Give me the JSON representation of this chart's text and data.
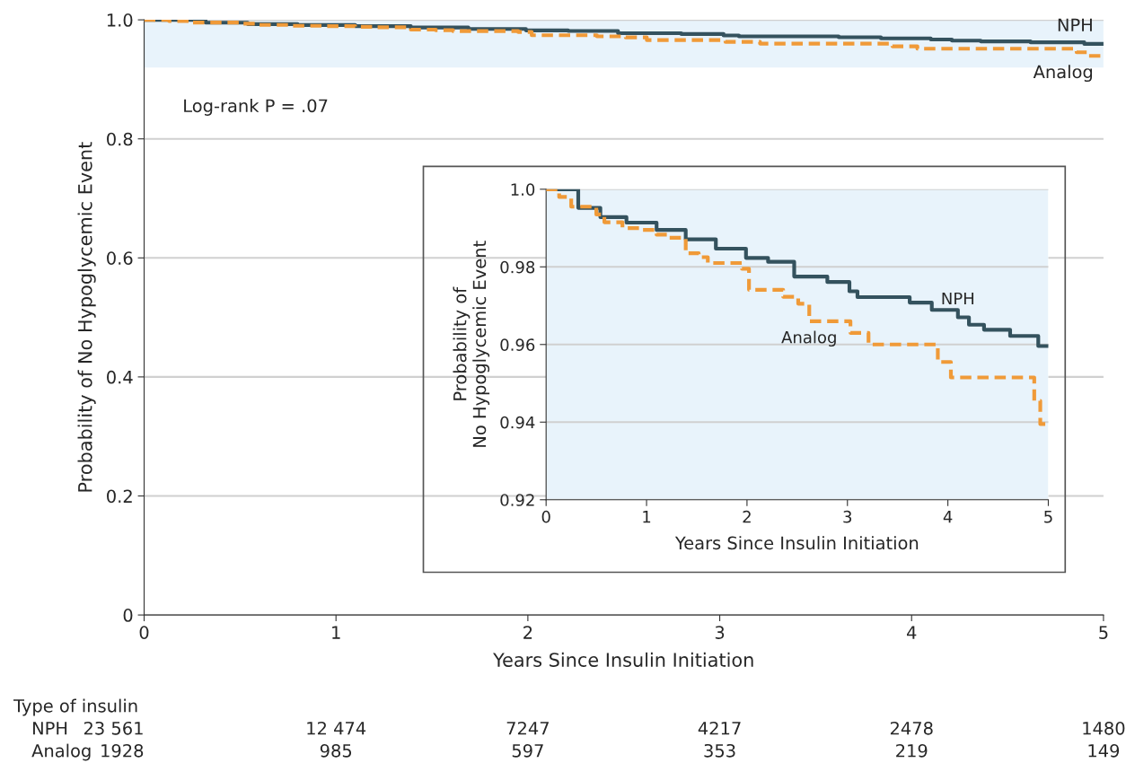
{
  "chart_data": [
    {
      "type": "step",
      "xlabel": "Years Since Insulin Initiation",
      "ylabel": "Probability of No Hypoglycemic Event",
      "xlim": [
        0,
        5
      ],
      "ylim": [
        0,
        1
      ],
      "xticks": [
        0,
        1,
        2,
        3,
        4,
        5
      ],
      "yticks": [
        0,
        0.2,
        0.4,
        0.6,
        0.8,
        {
          "value": 1,
          "label": "1.0"
        }
      ],
      "grid": "y",
      "legend": false,
      "marker": "none",
      "bands": [
        {
          "axis": "y",
          "from": 0.92,
          "to": 1,
          "color": "#e8f3fb"
        }
      ],
      "series": [
        {
          "name": "NPH",
          "color": "#34525e",
          "line_style": "solid",
          "x": [
            0,
            0.32,
            0.54,
            0.8,
            1.1,
            1.39,
            1.69,
            1.99,
            2.21,
            2.47,
            2.8,
            3.02,
            3.1,
            3.62,
            3.84,
            4.1,
            4.21,
            4.36,
            4.62,
            4.9,
            5
          ],
          "values": [
            1,
            0.9952,
            0.9928,
            0.9914,
            0.9895,
            0.9871,
            0.9847,
            0.9823,
            0.9813,
            0.9775,
            0.9761,
            0.9737,
            0.9722,
            0.9708,
            0.9689,
            0.967,
            0.9651,
            0.9638,
            0.9622,
            0.9596,
            0.9596
          ]
        },
        {
          "name": "Analog",
          "color": "#f09a38",
          "line_style": "dashed",
          "x": [
            0,
            0.13,
            0.25,
            0.5,
            0.58,
            0.76,
            0.95,
            1.1,
            1.21,
            1.39,
            1.52,
            1.61,
            1.95,
            2.02,
            2.36,
            2.51,
            2.62,
            3.03,
            3.21,
            3.9,
            4.03,
            4.86,
            4.92,
            5
          ],
          "values": [
            1,
            0.998,
            0.9955,
            0.9935,
            0.9915,
            0.99,
            0.9895,
            0.9883,
            0.9875,
            0.9835,
            0.9825,
            0.981,
            0.9795,
            0.9741,
            0.9723,
            0.9705,
            0.966,
            0.963,
            0.96,
            0.9555,
            0.9515,
            0.9455,
            0.9395,
            0.9395
          ]
        }
      ],
      "annotations": [
        "Log-rank P = .07",
        "Type of insulin",
        "NPH",
        "23 561",
        "12 474",
        "7247",
        "4217",
        "2478",
        "1480",
        "Analog",
        "1928",
        "985",
        "597",
        "353",
        "219",
        "149"
      ]
    },
    {
      "type": "step",
      "xlabel": "Years Since Insulin Initiation",
      "ylabel": "Probability of\nNo Hypoglycemic Event",
      "xlim": [
        0,
        5
      ],
      "ylim": [
        0.92,
        1
      ],
      "xticks": [
        0,
        1,
        2,
        3,
        4,
        5
      ],
      "yticks": [
        0.92,
        0.94,
        0.96,
        0.98,
        {
          "value": 1,
          "label": "1.0"
        }
      ],
      "grid": "y",
      "legend": false,
      "marker": "none",
      "bands": [
        {
          "axis": "y",
          "from": 0.92,
          "to": 1,
          "color": "#e8f3fb"
        }
      ],
      "series": [
        {
          "name": "NPH",
          "color": "#34525e",
          "line_style": "solid",
          "x": [
            0,
            0.32,
            0.54,
            0.8,
            1.1,
            1.39,
            1.69,
            1.99,
            2.21,
            2.47,
            2.8,
            3.02,
            3.1,
            3.62,
            3.84,
            4.1,
            4.21,
            4.36,
            4.62,
            4.9,
            5
          ],
          "values": [
            1,
            0.9952,
            0.9928,
            0.9914,
            0.9895,
            0.9871,
            0.9847,
            0.9823,
            0.9813,
            0.9775,
            0.9761,
            0.9737,
            0.9722,
            0.9708,
            0.9689,
            0.967,
            0.9651,
            0.9638,
            0.9622,
            0.9596,
            0.9596
          ]
        },
        {
          "name": "Analog",
          "color": "#f09a38",
          "line_style": "dashed",
          "x": [
            0,
            0.13,
            0.25,
            0.5,
            0.58,
            0.76,
            0.95,
            1.1,
            1.21,
            1.39,
            1.52,
            1.61,
            1.95,
            2.02,
            2.36,
            2.51,
            2.62,
            3.03,
            3.21,
            3.9,
            4.03,
            4.86,
            4.92,
            5
          ],
          "values": [
            1,
            0.998,
            0.9955,
            0.9935,
            0.9915,
            0.99,
            0.9895,
            0.9883,
            0.9875,
            0.9835,
            0.9825,
            0.981,
            0.9795,
            0.9741,
            0.9723,
            0.9705,
            0.966,
            0.963,
            0.96,
            0.9555,
            0.9515,
            0.9455,
            0.9395,
            0.9395
          ]
        }
      ]
    }
  ]
}
